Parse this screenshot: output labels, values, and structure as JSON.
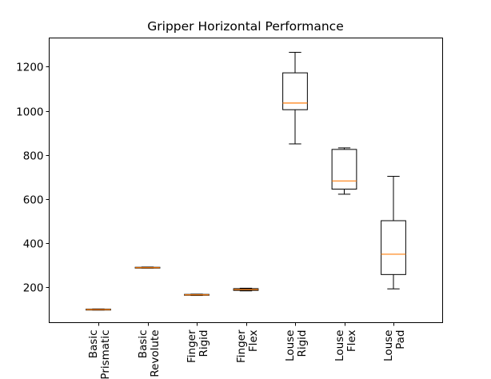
{
  "chart_data": {
    "type": "box",
    "title": "Gripper Horizontal Performance",
    "xlabel": "",
    "ylabel": "",
    "ylim": [
      40,
      1330
    ],
    "yticks": [
      200,
      400,
      600,
      800,
      1000,
      1200
    ],
    "grid": false,
    "categories": [
      "Basic\nPrismatic",
      "Basic\nRevolute",
      "Finger\nRigid",
      "Finger\nFlex",
      "Louse\nRigid",
      "Louse\nFlex",
      "Louse\nPad"
    ],
    "boxes": [
      {
        "whisker_low": 97,
        "q1": 97,
        "median": 99,
        "q3": 101,
        "whisker_high": 102
      },
      {
        "whisker_low": 287,
        "q1": 287,
        "median": 289,
        "q3": 291,
        "whisker_high": 292
      },
      {
        "whisker_low": 163,
        "q1": 164,
        "median": 166,
        "q3": 168,
        "whisker_high": 169
      },
      {
        "whisker_low": 184,
        "q1": 186,
        "median": 190,
        "q3": 194,
        "whisker_high": 196
      },
      {
        "whisker_low": 850,
        "q1": 1005,
        "median": 1035,
        "q3": 1172,
        "whisker_high": 1265
      },
      {
        "whisker_low": 622,
        "q1": 645,
        "median": 682,
        "q3": 825,
        "whisker_high": 832
      },
      {
        "whisker_low": 193,
        "q1": 258,
        "median": 350,
        "q3": 502,
        "whisker_high": 703
      }
    ],
    "colors": {
      "box": "#000000",
      "median": "#ff7f0e"
    }
  }
}
